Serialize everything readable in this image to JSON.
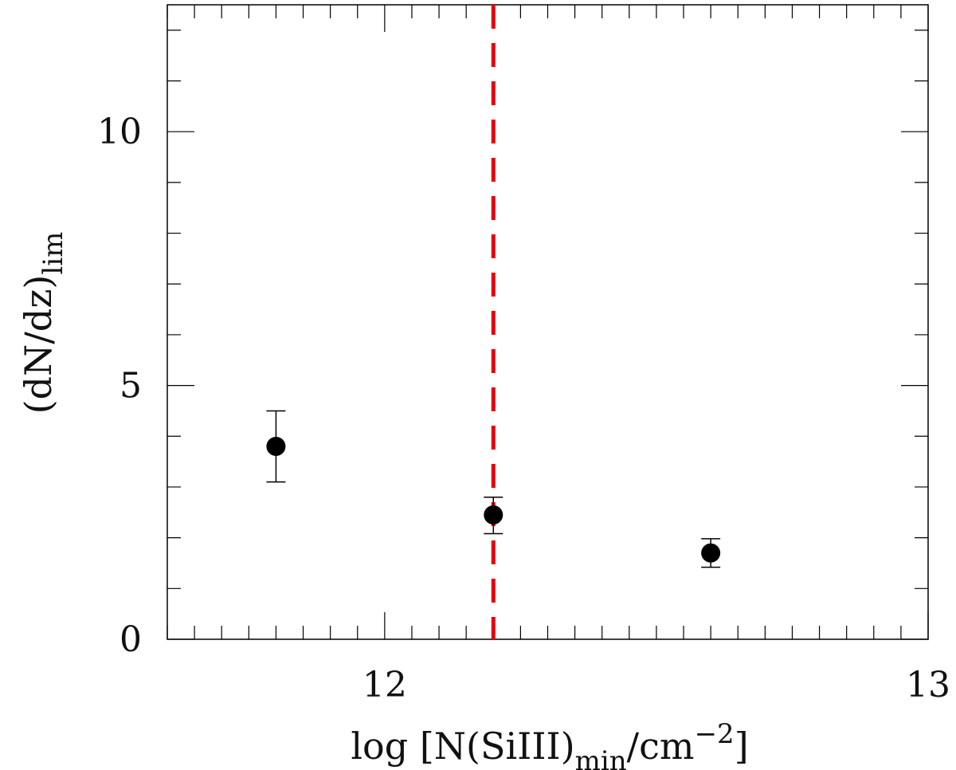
{
  "chart_data": {
    "type": "scatter",
    "xlabel": {
      "main": "log [N(SiIII)",
      "sub": "min",
      "mid": "/cm",
      "sup": "−2",
      "end": "]"
    },
    "ylabel": {
      "main": "(dN/dz)",
      "sub": "lim"
    },
    "xlim": [
      11.6,
      13.0
    ],
    "ylim": [
      0,
      12.5
    ],
    "xticks": [
      {
        "value": 12,
        "label": "12"
      },
      {
        "value": 13,
        "label": "13"
      }
    ],
    "yticks": [
      {
        "value": 0,
        "label": "0"
      },
      {
        "value": 5,
        "label": "5"
      },
      {
        "value": 10,
        "label": "10"
      }
    ],
    "x_minor_step": 0.05,
    "y_minor_step": 1,
    "points": [
      {
        "x": 11.8,
        "y": 3.8,
        "err_low": 0.7,
        "err_high": 0.7
      },
      {
        "x": 12.2,
        "y": 2.45,
        "err_low": 0.37,
        "err_high": 0.35
      },
      {
        "x": 12.6,
        "y": 1.7,
        "err_low": 0.28,
        "err_high": 0.28
      }
    ],
    "vline": {
      "x": 12.2,
      "style": "dashed",
      "color": "#e8000b"
    },
    "marker_color": "#000000",
    "grid": false
  }
}
